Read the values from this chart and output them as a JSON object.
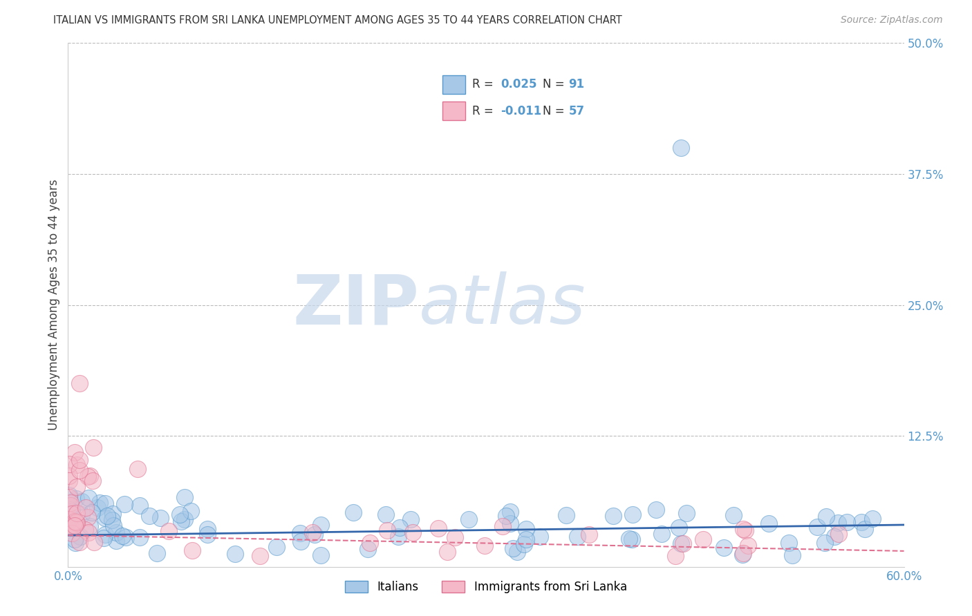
{
  "title": "ITALIAN VS IMMIGRANTS FROM SRI LANKA UNEMPLOYMENT AMONG AGES 35 TO 44 YEARS CORRELATION CHART",
  "source": "Source: ZipAtlas.com",
  "ylabel": "Unemployment Among Ages 35 to 44 years",
  "xlim": [
    0.0,
    0.6
  ],
  "ylim": [
    0.0,
    0.5
  ],
  "ytick_vals": [
    0.0,
    0.125,
    0.25,
    0.375,
    0.5
  ],
  "ytick_labels": [
    "",
    "12.5%",
    "25.0%",
    "37.5%",
    "50.0%"
  ],
  "xtick_vals": [
    0.0,
    0.1,
    0.2,
    0.3,
    0.4,
    0.5,
    0.6
  ],
  "xtick_labels": [
    "0.0%",
    "",
    "",
    "",
    "",
    "",
    "60.0%"
  ],
  "watermark_zip": "ZIP",
  "watermark_atlas": "atlas",
  "italian_color_face": "#A8C8E8",
  "italian_color_edge": "#5599CC",
  "srilanka_color_face": "#F4B8C8",
  "srilanka_color_edge": "#E07090",
  "italian_line_color": "#3366AA",
  "srilanka_line_color": "#E07090",
  "grid_color": "#BBBBBB",
  "background_color": "#FFFFFF",
  "tick_color": "#5599CC",
  "title_color": "#333333",
  "source_color": "#999999",
  "legend_text_color": "#333333",
  "legend_number_color": "#5599CC"
}
